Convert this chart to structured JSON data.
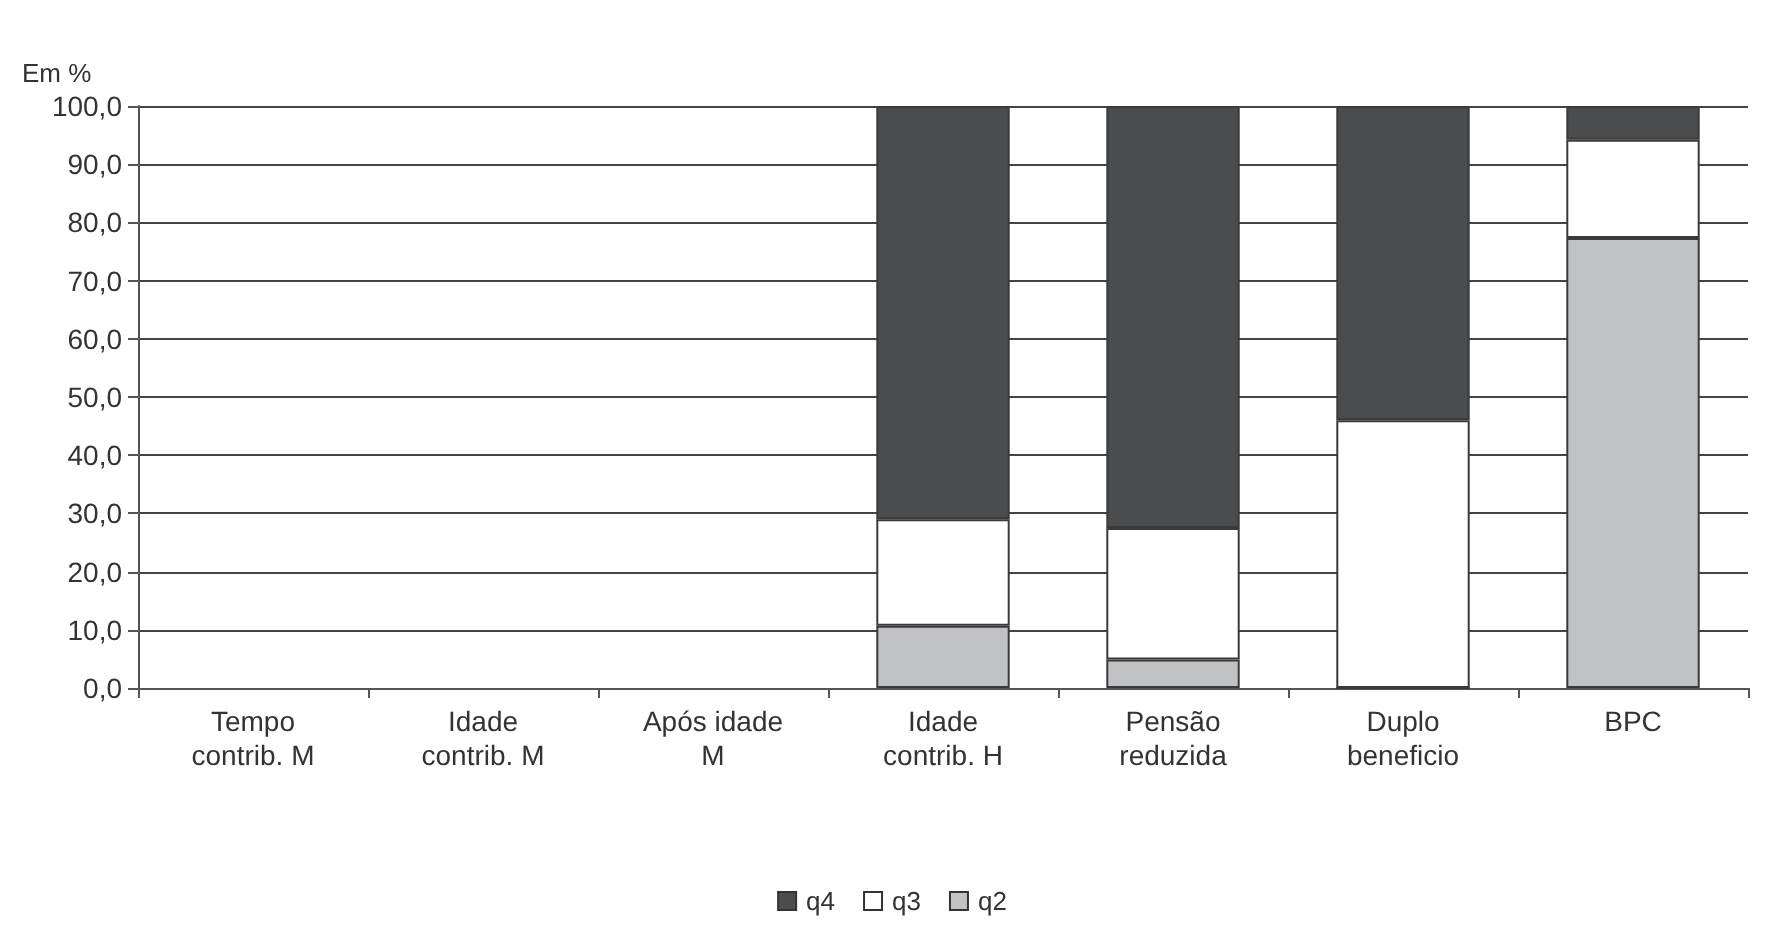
{
  "chart_data": {
    "type": "bar",
    "stacked": true,
    "ylabel": "Em %",
    "categories": [
      "Tempo\ncontrib. M",
      "Idade\ncontrib. M",
      "Após idade\nM",
      "Idade\ncontrib. H",
      "Pensão\nreduzida",
      "Duplo\nbeneficio",
      "BPC"
    ],
    "series": [
      {
        "name": "q2",
        "color": "#c1c2c5",
        "values": [
          null,
          null,
          null,
          10.7,
          4.9,
          0,
          77.3
        ]
      },
      {
        "name": "q3",
        "color": "#ffffff",
        "values": [
          null,
          null,
          null,
          18.3,
          22.6,
          46.0,
          16.9
        ]
      },
      {
        "name": "q4",
        "color": "#4b4c4e",
        "values": [
          null,
          null,
          null,
          71.0,
          72.5,
          54.0,
          5.8
        ]
      }
    ],
    "ylim": [
      0,
      100
    ],
    "yticks": [
      {
        "value": 0,
        "label": "0,0"
      },
      {
        "value": 10,
        "label": "10,0"
      },
      {
        "value": 20,
        "label": "20,0"
      },
      {
        "value": 30,
        "label": "30,0"
      },
      {
        "value": 40,
        "label": "40,0"
      },
      {
        "value": 50,
        "label": "50,0"
      },
      {
        "value": 60,
        "label": "60,0"
      },
      {
        "value": 70,
        "label": "70,0"
      },
      {
        "value": 80,
        "label": "80,0"
      },
      {
        "value": 90,
        "label": "90,0"
      },
      {
        "value": 100,
        "label": "100,0"
      }
    ],
    "grid": "y",
    "legend": "bottom"
  }
}
